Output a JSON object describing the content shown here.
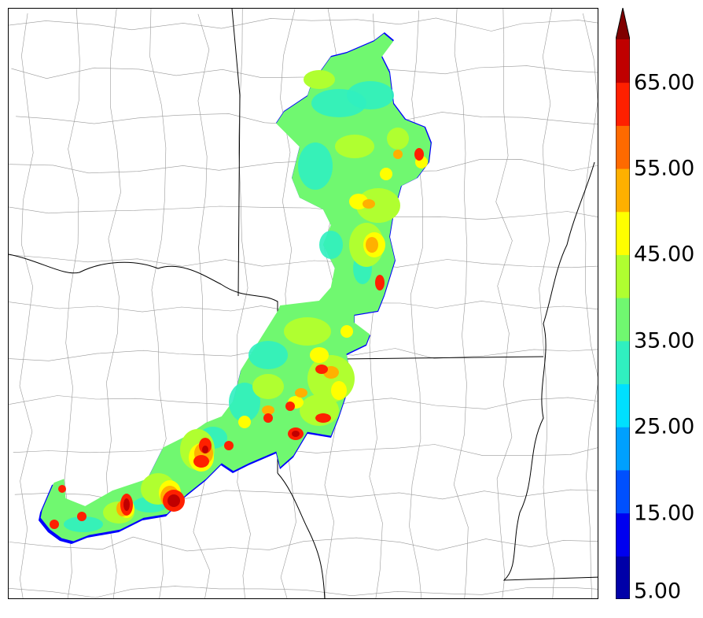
{
  "colorbar": {
    "labels": [
      "5.00",
      "15.00",
      "25.00",
      "35.00",
      "45.00",
      "55.00",
      "65.00"
    ],
    "bins": [
      "#0000a8",
      "#0000f0",
      "#0050ff",
      "#00a0ff",
      "#00e0ff",
      "#30f0c0",
      "#70f870",
      "#b0ff30",
      "#ffff00",
      "#ffb000",
      "#ff6a00",
      "#ff2000",
      "#c00000"
    ],
    "extend_color": "#800000"
  },
  "map": {
    "region": "state and county boundaries",
    "field_colors": {
      "edge": "#0000ff",
      "low": "#30f0c0",
      "mid": "#70f870",
      "high": "#b0ff30",
      "yellow": "#ffff00",
      "orange": "#ffb000",
      "red": "#ff2000",
      "darkred": "#c00000"
    }
  }
}
